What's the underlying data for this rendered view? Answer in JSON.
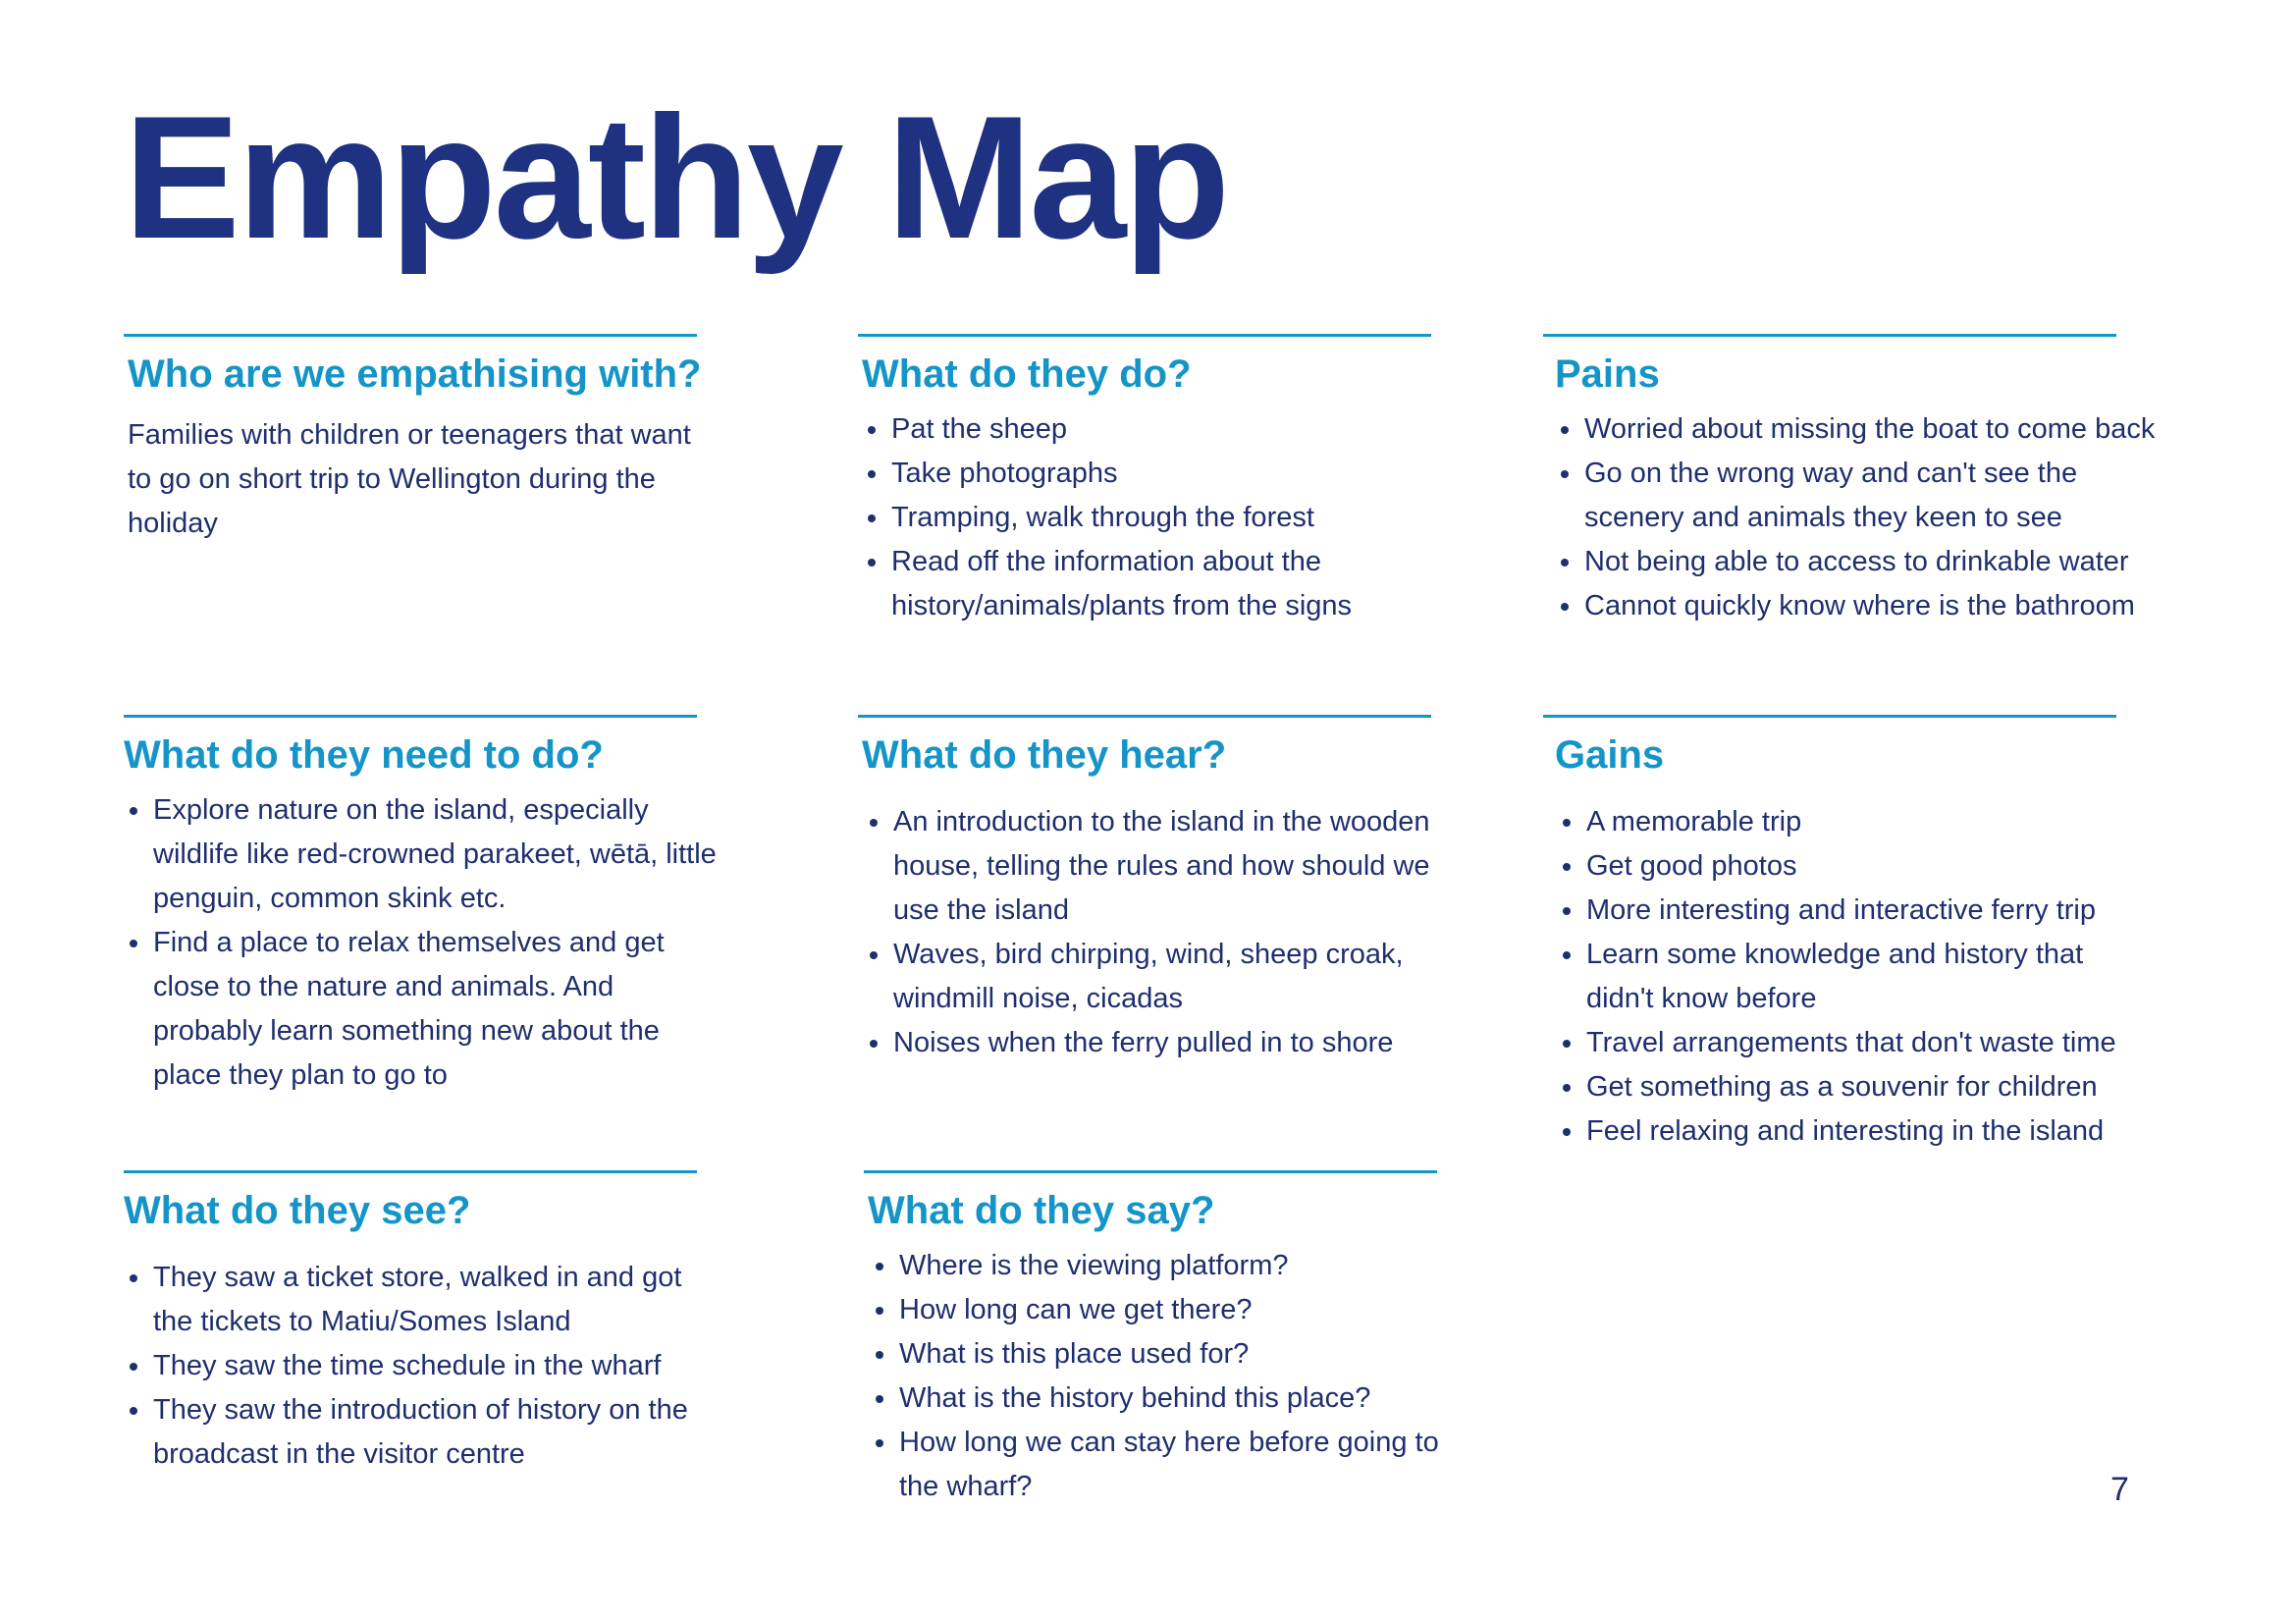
{
  "title": "Empathy Map",
  "colors": {
    "title": "#1f3281",
    "heading": "#1595c7",
    "rule": "#1596c9",
    "body_text": "#1f2f6e"
  },
  "sections": {
    "who": {
      "heading": "Who are we empathising with?",
      "text": "Families with children or teenagers that want to go on short trip to Wellington during the holiday"
    },
    "do": {
      "heading": "What do they do?",
      "items": [
        "Pat the sheep",
        "Take photographs",
        "Tramping, walk through the forest",
        "Read off the information about the history/animals/plants from the signs"
      ]
    },
    "pains": {
      "heading": "Pains",
      "items": [
        "Worried about missing the boat to come back",
        "Go on the wrong way and can't see the scenery and animals they keen to see",
        "Not being able to access to drinkable water",
        "Cannot quickly know where is the bathroom"
      ]
    },
    "need": {
      "heading": "What do they need to do?",
      "items": [
        "Explore nature on the island, especially wildlife like red-crowned parakeet, wētā, little penguin, common skink etc.",
        "Find a place to relax themselves and get close to the nature and animals. And probably learn something new about the place they plan to go to"
      ]
    },
    "hear": {
      "heading": "What do they hear?",
      "items": [
        "An introduction to the island in the wooden house, telling the rules and how should we use the island",
        "Waves, bird chirping, wind, sheep croak, windmill noise, cicadas",
        "Noises when the ferry pulled in to shore"
      ]
    },
    "gains": {
      "heading": "Gains",
      "items": [
        "A memorable trip",
        "Get good photos",
        "More interesting and interactive ferry trip",
        "Learn some knowledge and history that didn't know before",
        "Travel arrangements that don't waste time",
        "Get something as a souvenir for children",
        "Feel relaxing and interesting in the island"
      ]
    },
    "see": {
      "heading": "What do they see?",
      "items": [
        "They saw a ticket store, walked in and got the tickets to Matiu/Somes Island",
        "They saw the time schedule in the wharf",
        "They saw the introduction of history on the broadcast in the visitor centre"
      ]
    },
    "say": {
      "heading": "What do they say?",
      "items": [
        "Where is the viewing platform?",
        "How long can we get there?",
        "What is this place used for?",
        "What is the history behind this place?",
        "How long we can stay here before going to the wharf?"
      ]
    }
  },
  "page_number": "7"
}
